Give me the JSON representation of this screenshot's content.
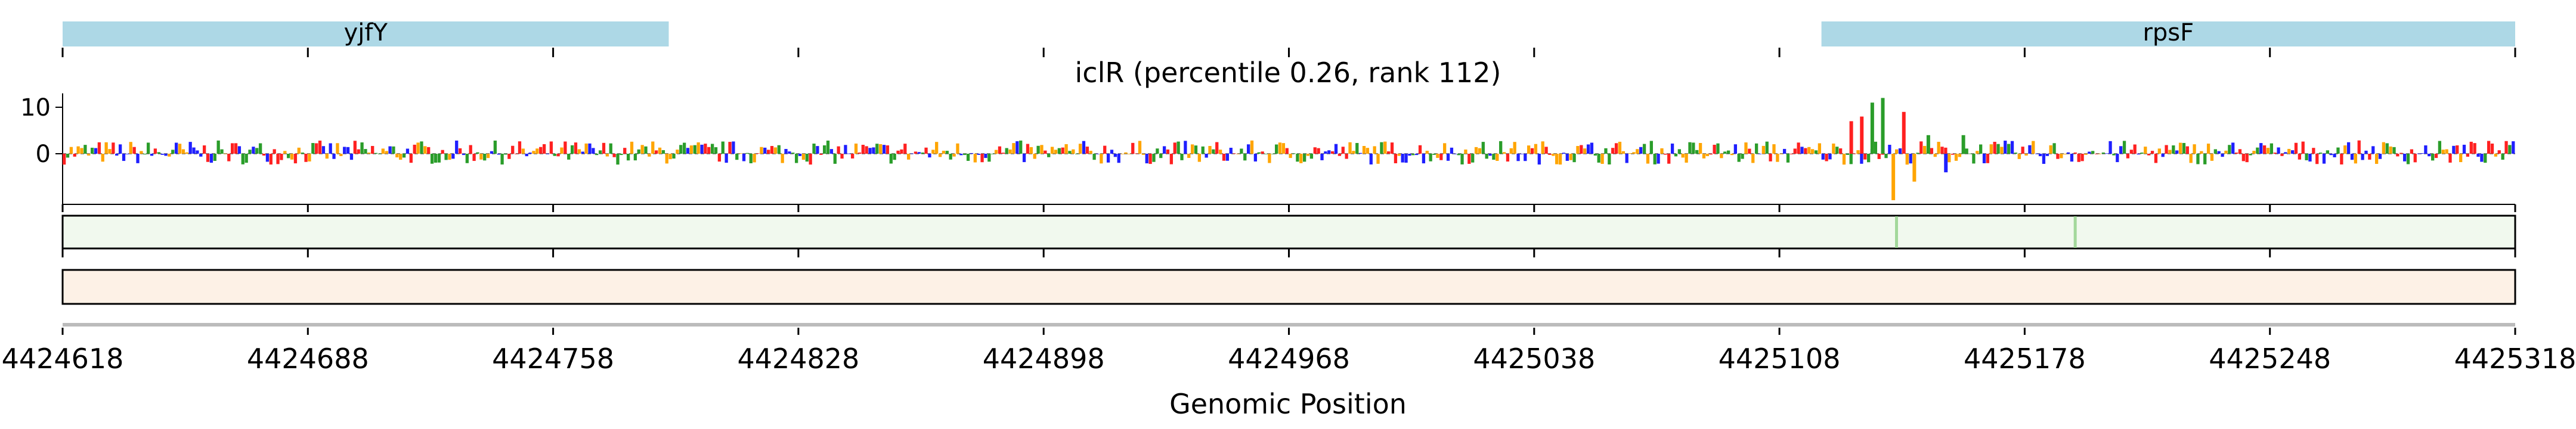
{
  "chart_data": {
    "type": "sequence-logo",
    "title": "iclR (percentile 0.26, rank 112)",
    "xlabel": "Genomic Position",
    "ylabel": "",
    "x_range": [
      4424618,
      4425318
    ],
    "x_ticks": [
      4424618,
      4424688,
      4424758,
      4424828,
      4424898,
      4424968,
      4425038,
      4425108,
      4425178,
      4425248,
      4425318
    ],
    "y_ticks": [
      0,
      10
    ],
    "ylim": [
      -11,
      13
    ],
    "genes": [
      {
        "name": "yjfY",
        "start": 4424618,
        "end": 4424791
      },
      {
        "name": "rpsF",
        "start": 4425120,
        "end": 4425318
      }
    ],
    "base_colors": {
      "A": "#2a9d2a",
      "C": "#1f1fff",
      "G": "#ffa500",
      "T": "#ff2020"
    },
    "track_colors": {
      "conservation": "#f1f9ee",
      "coverage": "#fdf1e6"
    },
    "peaks": [
      {
        "position": 4425128,
        "value": 7
      },
      {
        "position": 4425131,
        "value": 8
      },
      {
        "position": 4425134,
        "value": 11
      },
      {
        "position": 4425137,
        "value": 12
      },
      {
        "position": 4425140,
        "value": -10
      },
      {
        "position": 4425143,
        "value": 9
      },
      {
        "position": 4425146,
        "value": -6
      },
      {
        "position": 4425150,
        "value": 4
      },
      {
        "position": 4425155,
        "value": -4
      },
      {
        "position": 4425160,
        "value": 4
      }
    ]
  }
}
